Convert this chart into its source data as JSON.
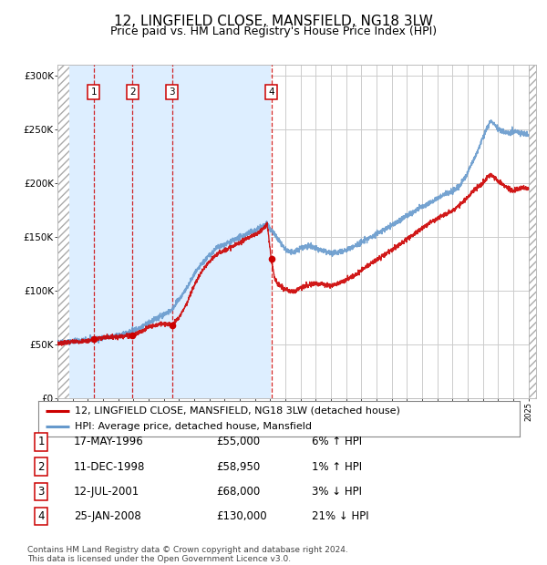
{
  "title": "12, LINGFIELD CLOSE, MANSFIELD, NG18 3LW",
  "subtitle": "Price paid vs. HM Land Registry's House Price Index (HPI)",
  "title_fontsize": 11,
  "subtitle_fontsize": 9,
  "ylim": [
    0,
    310000
  ],
  "xlim_start": 1994.0,
  "xlim_end": 2025.5,
  "yticks": [
    0,
    50000,
    100000,
    150000,
    200000,
    250000,
    300000
  ],
  "ytick_labels": [
    "£0",
    "£50K",
    "£100K",
    "£150K",
    "£200K",
    "£250K",
    "£300K"
  ],
  "transactions": [
    {
      "date_year": 1996.38,
      "price": 55000,
      "label": "1"
    },
    {
      "date_year": 1998.94,
      "price": 58950,
      "label": "2"
    },
    {
      "date_year": 2001.53,
      "price": 68000,
      "label": "3"
    },
    {
      "date_year": 2008.07,
      "price": 130000,
      "label": "4"
    }
  ],
  "transaction_table": [
    {
      "num": "1",
      "date": "17-MAY-1996",
      "price": "£55,000",
      "hpi": "6% ↑ HPI"
    },
    {
      "num": "2",
      "date": "11-DEC-1998",
      "price": "£58,950",
      "hpi": "1% ↑ HPI"
    },
    {
      "num": "3",
      "date": "12-JUL-2001",
      "price": "£68,000",
      "hpi": "3% ↓ HPI"
    },
    {
      "num": "4",
      "date": "25-JAN-2008",
      "price": "£130,000",
      "hpi": "21% ↓ HPI"
    }
  ],
  "legend_red": "12, LINGFIELD CLOSE, MANSFIELD, NG18 3LW (detached house)",
  "legend_blue": "HPI: Average price, detached house, Mansfield",
  "footnote": "Contains HM Land Registry data © Crown copyright and database right 2024.\nThis data is licensed under the Open Government Licence v3.0.",
  "bg_shade_color": "#ddeeff",
  "red_color": "#cc0000",
  "blue_color": "#6699cc",
  "left_hatch_end": 1994.75,
  "right_hatch_start": 2025.0
}
